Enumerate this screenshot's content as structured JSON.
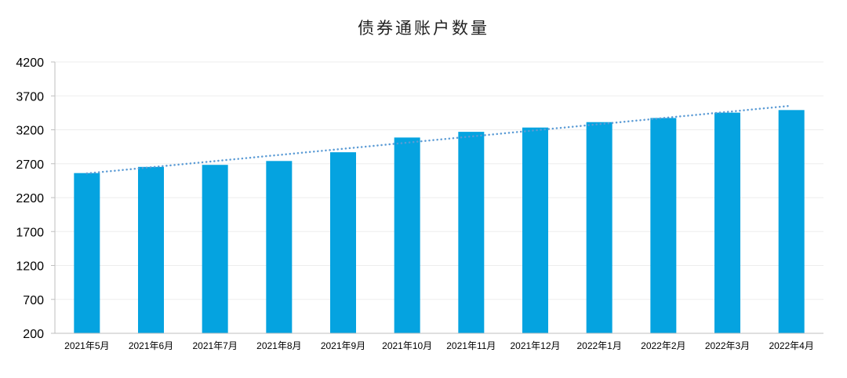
{
  "chart_data": {
    "type": "bar",
    "title": "债券通账户数量",
    "categories": [
      "2021年5月",
      "2021年6月",
      "2021年7月",
      "2021年8月",
      "2021年9月",
      "2021年10月",
      "2021年11月",
      "2021年12月",
      "2022年1月",
      "2022年2月",
      "2022年3月",
      "2022年4月"
    ],
    "values": [
      2562,
      2653,
      2683,
      2740,
      2869,
      3086,
      3170,
      3233,
      3313,
      3374,
      3453,
      3491
    ],
    "trendline": {
      "type": "linear",
      "style": "dotted",
      "start": 2557,
      "end": 3555
    },
    "ylim": [
      200,
      4200
    ],
    "yticks": [
      "200",
      "700",
      "1200",
      "1700",
      "2200",
      "2700",
      "3200",
      "3700",
      "4200"
    ],
    "xlabel": "",
    "ylabel": "",
    "grid": true,
    "legend": "none",
    "colors": {
      "bar": "#05A3E0",
      "trendline": "#5B9BD5",
      "grid": "#EDEDED",
      "axis": "#BFBFBF"
    }
  }
}
